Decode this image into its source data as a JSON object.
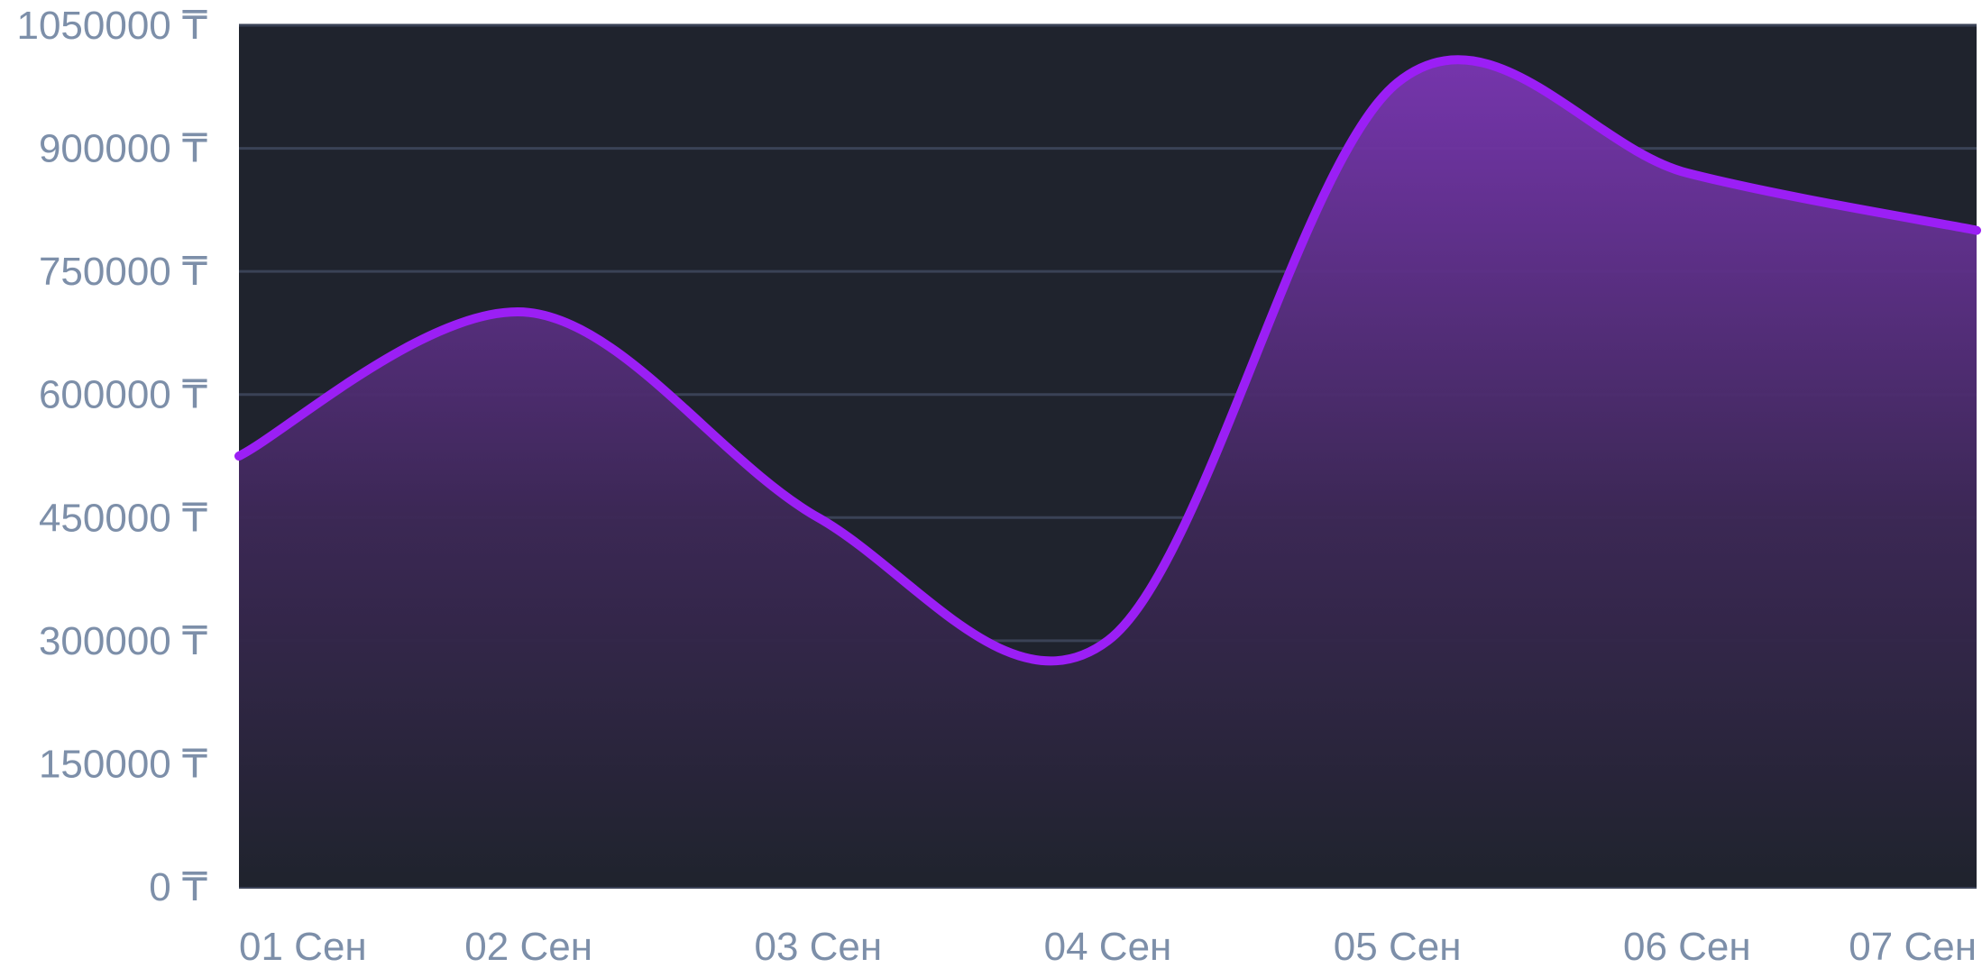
{
  "chart_data": {
    "type": "area",
    "currency": "₸",
    "x": [
      "01 Сен",
      "02 Сен",
      "03 Сен",
      "04 Сен",
      "05 Сен",
      "06 Сен",
      "07 Сен"
    ],
    "y_ticks": [
      "1050000 ₸",
      "900000 ₸",
      "750000 ₸",
      "600000 ₸",
      "450000 ₸",
      "300000 ₸",
      "150000 ₸",
      "0 ₸"
    ],
    "series": [
      {
        "values": [
          525000,
          700000,
          450000,
          300000,
          980000,
          870000,
          800000
        ]
      }
    ],
    "ylim": [
      0,
      1050000
    ],
    "grid": true,
    "colors": {
      "line": "#9b1ff5",
      "plot_background": "#1f232d",
      "grid": "#3a4256",
      "text": "#7d8fa9",
      "page_background": "#ffffff"
    }
  }
}
